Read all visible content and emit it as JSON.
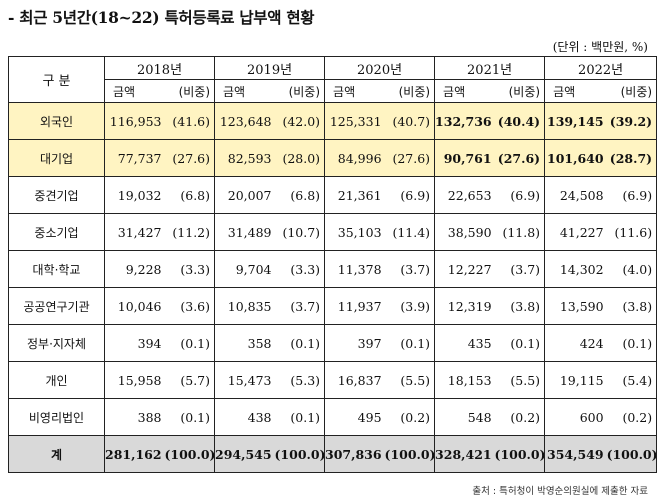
{
  "title": "- 최근 5년간(18~22) 특허등록료 납부액 현황",
  "unit": "(단위 : 백만원, %)",
  "header": {
    "category": "구 분",
    "years": [
      "2018년",
      "2019년",
      "2020년",
      "2021년",
      "2022년"
    ],
    "amount_label": "금액",
    "share_label": "(비중)"
  },
  "rows": [
    {
      "category": "외국인",
      "cells": [
        [
          "116,953",
          "(41.6)"
        ],
        [
          "123,648",
          "(42.0)"
        ],
        [
          "125,331",
          "(40.7)"
        ],
        [
          "132,736",
          "(40.4)"
        ],
        [
          "139,145",
          "(39.2)"
        ]
      ]
    },
    {
      "category": "대기업",
      "cells": [
        [
          "77,737",
          "(27.6)"
        ],
        [
          "82,593",
          "(28.0)"
        ],
        [
          "84,996",
          "(27.6)"
        ],
        [
          "90,761",
          "(27.6)"
        ],
        [
          "101,640",
          "(28.7)"
        ]
      ]
    },
    {
      "category": "중견기업",
      "cells": [
        [
          "19,032",
          "(6.8)"
        ],
        [
          "20,007",
          "(6.8)"
        ],
        [
          "21,361",
          "(6.9)"
        ],
        [
          "22,653",
          "(6.9)"
        ],
        [
          "24,508",
          "(6.9)"
        ]
      ]
    },
    {
      "category": "중소기업",
      "cells": [
        [
          "31,427",
          "(11.2)"
        ],
        [
          "31,489",
          "(10.7)"
        ],
        [
          "35,103",
          "(11.4)"
        ],
        [
          "38,590",
          "(11.8)"
        ],
        [
          "41,227",
          "(11.6)"
        ]
      ]
    },
    {
      "category": "대학·학교",
      "cells": [
        [
          "9,228",
          "(3.3)"
        ],
        [
          "9,704",
          "(3.3)"
        ],
        [
          "11,378",
          "(3.7)"
        ],
        [
          "12,227",
          "(3.7)"
        ],
        [
          "14,302",
          "(4.0)"
        ]
      ]
    },
    {
      "category": "공공연구기관",
      "cells": [
        [
          "10,046",
          "(3.6)"
        ],
        [
          "10,835",
          "(3.7)"
        ],
        [
          "11,937",
          "(3.9)"
        ],
        [
          "12,319",
          "(3.8)"
        ],
        [
          "13,590",
          "(3.8)"
        ]
      ]
    },
    {
      "category": "정부·지자체",
      "cells": [
        [
          "394",
          "(0.1)"
        ],
        [
          "358",
          "(0.1)"
        ],
        [
          "397",
          "(0.1)"
        ],
        [
          "435",
          "(0.1)"
        ],
        [
          "424",
          "(0.1)"
        ]
      ]
    },
    {
      "category": "개인",
      "cells": [
        [
          "15,958",
          "(5.7)"
        ],
        [
          "15,473",
          "(5.3)"
        ],
        [
          "16,837",
          "(5.5)"
        ],
        [
          "18,153",
          "(5.5)"
        ],
        [
          "19,115",
          "(5.4)"
        ]
      ]
    },
    {
      "category": "비영리법인",
      "cells": [
        [
          "388",
          "(0.1)"
        ],
        [
          "438",
          "(0.1)"
        ],
        [
          "495",
          "(0.2)"
        ],
        [
          "548",
          "(0.2)"
        ],
        [
          "600",
          "(0.2)"
        ]
      ]
    }
  ],
  "total": {
    "category": "계",
    "cells": [
      [
        "281,162",
        "(100.0)"
      ],
      [
        "294,545",
        "(100.0)"
      ],
      [
        "307,836",
        "(100.0)"
      ],
      [
        "328,421",
        "(100.0)"
      ],
      [
        "354,549",
        "(100.0)"
      ]
    ]
  },
  "source": "출처 : 특허청이 박영순의원실에 제출한 자료",
  "colors": {
    "highlight": "#fff4c2",
    "total_bg": "#d9d9d9",
    "border": "#222222"
  }
}
